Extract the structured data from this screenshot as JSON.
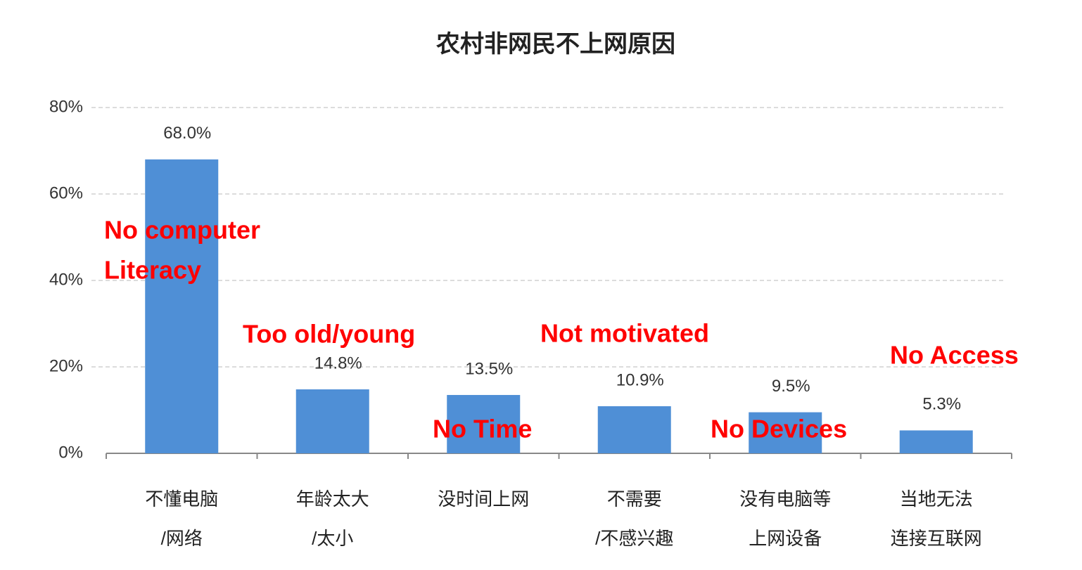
{
  "chart_data": {
    "type": "bar",
    "title": "农村非网民不上网原因",
    "categories": [
      [
        "不懂电脑",
        "/网络"
      ],
      [
        "年龄太大",
        "/太小"
      ],
      [
        "没时间上网"
      ],
      [
        "不需要",
        "/不感兴趣"
      ],
      [
        "没有电脑等",
        "上网设备"
      ],
      [
        "当地无法",
        "连接互联网"
      ]
    ],
    "values": [
      68.0,
      14.8,
      13.5,
      10.9,
      9.5,
      5.3
    ],
    "value_labels": [
      "68.0%",
      "14.8%",
      "13.5%",
      "10.9%",
      "9.5%",
      "5.3%"
    ],
    "color": "#4f8fd6",
    "ylim": [
      0,
      80
    ],
    "yticks": [
      {
        "value": 0,
        "label": "0%"
      },
      {
        "value": 20,
        "label": "20%"
      },
      {
        "value": 40,
        "label": "40%"
      },
      {
        "value": 60,
        "label": "60%"
      },
      {
        "value": 80,
        "label": "80%"
      }
    ],
    "grid": true,
    "annotations": [
      [
        "No computer",
        "Literacy"
      ],
      [
        "Too old/young"
      ],
      [
        "No Time"
      ],
      [
        "Not motivated"
      ],
      [
        "No Devices"
      ],
      [
        "No Access"
      ]
    ]
  }
}
